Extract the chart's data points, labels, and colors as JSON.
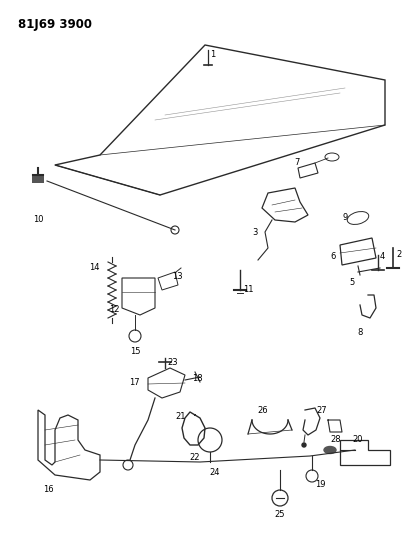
{
  "title": "81J69 3900",
  "bg_color": "#ffffff",
  "line_color": "#2a2a2a",
  "text_color": "#000000",
  "title_fontsize": 8.5,
  "label_fontsize": 6.0,
  "figsize": [
    4.11,
    5.33
  ],
  "dpi": 100
}
